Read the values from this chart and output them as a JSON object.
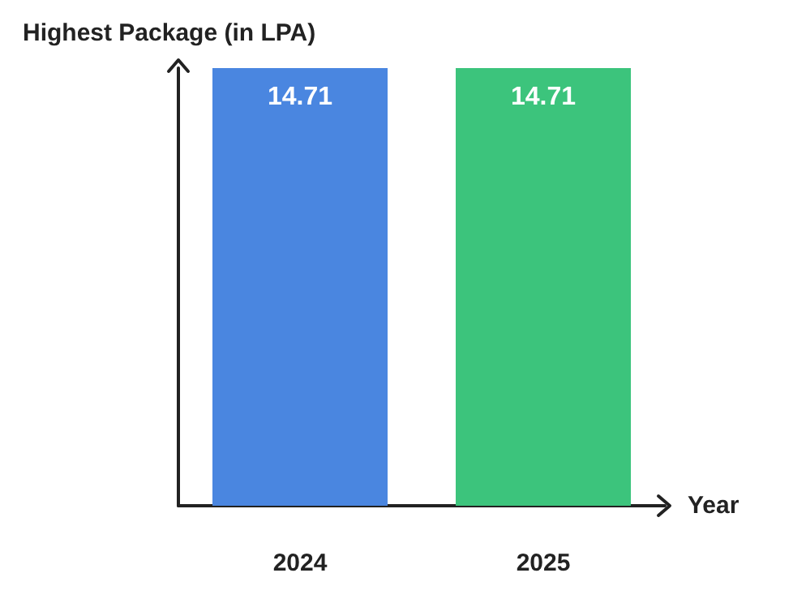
{
  "chart_data": {
    "type": "bar",
    "ylabel": "Highest Package (in LPA)",
    "xlabel": "Year",
    "categories": [
      "2024",
      "2025"
    ],
    "values": [
      14.71,
      14.71
    ],
    "colors": [
      "#4a86e0",
      "#3cc47c"
    ],
    "data_labels": true,
    "tick_labels": "x",
    "grid": false
  }
}
